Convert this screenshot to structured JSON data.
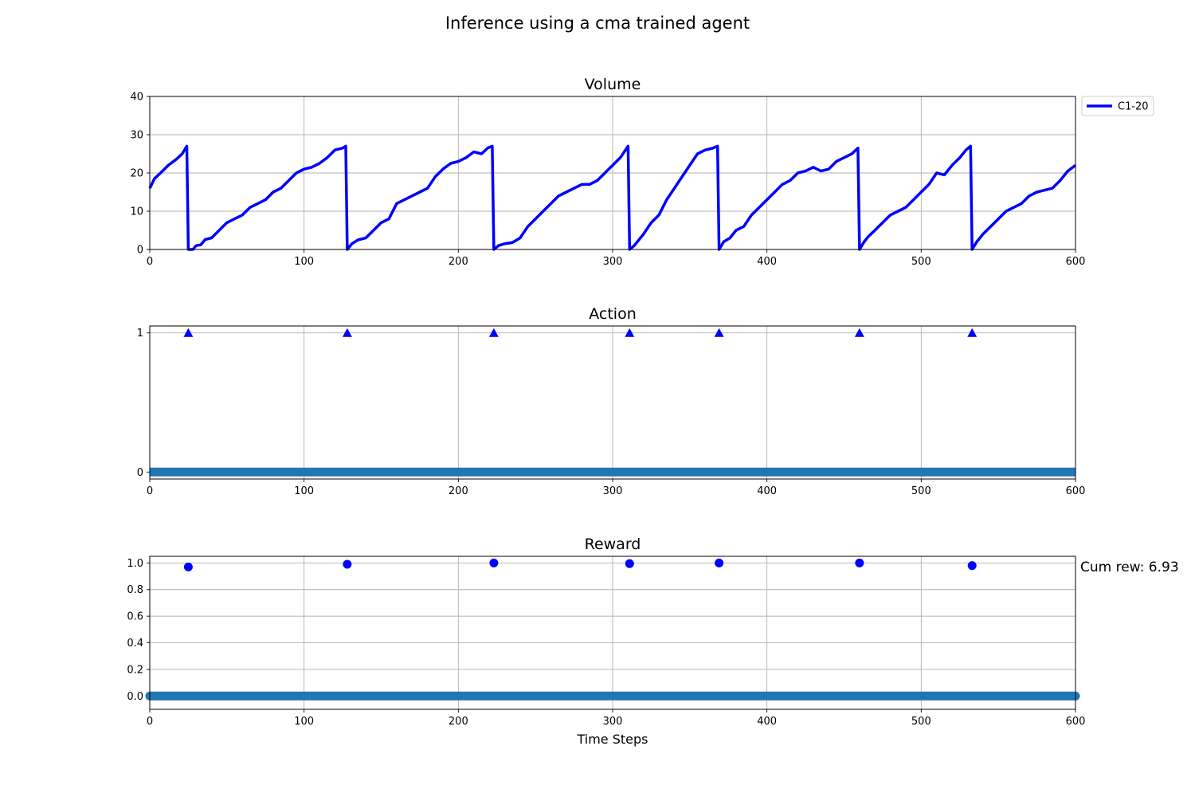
{
  "figure": {
    "title": "Inference using a cma trained agent",
    "xlabel": "Time Steps",
    "cum_reward_label": "Cum rew: 6.93"
  },
  "colors": {
    "series": "#0000ff",
    "baseline": "#1f77b4",
    "grid": "#b0b0b0"
  },
  "chart_data": [
    {
      "type": "line",
      "title": "Volume",
      "xlim": [
        0,
        600
      ],
      "ylim": [
        0,
        40
      ],
      "xticks": [
        0,
        100,
        200,
        300,
        400,
        500,
        600
      ],
      "yticks": [
        0,
        10,
        20,
        30,
        40
      ],
      "grid": true,
      "legend": {
        "placement": "outside-top-right",
        "entries": [
          "C1-20"
        ]
      },
      "series": [
        {
          "name": "C1-20",
          "points": [
            [
              0,
              16
            ],
            [
              3,
              18.5
            ],
            [
              7,
              20
            ],
            [
              12,
              22
            ],
            [
              17,
              23.5
            ],
            [
              21,
              25
            ],
            [
              24,
              27
            ],
            [
              25,
              0
            ],
            [
              28,
              0
            ],
            [
              30,
              1
            ],
            [
              33,
              1.2
            ],
            [
              36,
              2.6
            ],
            [
              40,
              3
            ],
            [
              45,
              5
            ],
            [
              50,
              7
            ],
            [
              55,
              8
            ],
            [
              60,
              9
            ],
            [
              65,
              11
            ],
            [
              70,
              12
            ],
            [
              75,
              13
            ],
            [
              80,
              15
            ],
            [
              85,
              16
            ],
            [
              90,
              18
            ],
            [
              95,
              20
            ],
            [
              100,
              21
            ],
            [
              105,
              21.5
            ],
            [
              110,
              22.5
            ],
            [
              115,
              24
            ],
            [
              120,
              26
            ],
            [
              125,
              26.5
            ],
            [
              127,
              27
            ],
            [
              128,
              0
            ],
            [
              131,
              1.5
            ],
            [
              135,
              2.5
            ],
            [
              140,
              3
            ],
            [
              145,
              5
            ],
            [
              150,
              7
            ],
            [
              155,
              8
            ],
            [
              160,
              12
            ],
            [
              165,
              13
            ],
            [
              170,
              14
            ],
            [
              175,
              15
            ],
            [
              180,
              16
            ],
            [
              185,
              19
            ],
            [
              190,
              21
            ],
            [
              195,
              22.5
            ],
            [
              200,
              23
            ],
            [
              205,
              24
            ],
            [
              210,
              25.5
            ],
            [
              215,
              25
            ],
            [
              219,
              26.5
            ],
            [
              222,
              27
            ],
            [
              223,
              0
            ],
            [
              226,
              1
            ],
            [
              230,
              1.5
            ],
            [
              235,
              1.8
            ],
            [
              240,
              3
            ],
            [
              245,
              6
            ],
            [
              250,
              8
            ],
            [
              255,
              10
            ],
            [
              260,
              12
            ],
            [
              265,
              14
            ],
            [
              270,
              15
            ],
            [
              275,
              16
            ],
            [
              280,
              17
            ],
            [
              285,
              17
            ],
            [
              290,
              18
            ],
            [
              295,
              20
            ],
            [
              300,
              22
            ],
            [
              305,
              24
            ],
            [
              310,
              27
            ],
            [
              311,
              0
            ],
            [
              314,
              1
            ],
            [
              320,
              4
            ],
            [
              325,
              7
            ],
            [
              330,
              9
            ],
            [
              335,
              13
            ],
            [
              340,
              16
            ],
            [
              345,
              19
            ],
            [
              350,
              22
            ],
            [
              355,
              25
            ],
            [
              360,
              26
            ],
            [
              365,
              26.5
            ],
            [
              368,
              27
            ],
            [
              369,
              0
            ],
            [
              372,
              2
            ],
            [
              376,
              3
            ],
            [
              380,
              5
            ],
            [
              385,
              6
            ],
            [
              390,
              9
            ],
            [
              395,
              11
            ],
            [
              400,
              13
            ],
            [
              405,
              15
            ],
            [
              410,
              17
            ],
            [
              415,
              18
            ],
            [
              420,
              20
            ],
            [
              425,
              20.5
            ],
            [
              430,
              21.5
            ],
            [
              435,
              20.5
            ],
            [
              440,
              21
            ],
            [
              445,
              23
            ],
            [
              450,
              24
            ],
            [
              455,
              25
            ],
            [
              459,
              26.5
            ],
            [
              460,
              0
            ],
            [
              463,
              2
            ],
            [
              466,
              3.5
            ],
            [
              470,
              5
            ],
            [
              475,
              7
            ],
            [
              480,
              9
            ],
            [
              485,
              10
            ],
            [
              490,
              11
            ],
            [
              495,
              13
            ],
            [
              500,
              15
            ],
            [
              505,
              17
            ],
            [
              510,
              20
            ],
            [
              515,
              19.5
            ],
            [
              520,
              22
            ],
            [
              525,
              24
            ],
            [
              529,
              26
            ],
            [
              532,
              27
            ],
            [
              533,
              0
            ],
            [
              536,
              2
            ],
            [
              540,
              4
            ],
            [
              545,
              6
            ],
            [
              550,
              8
            ],
            [
              555,
              10
            ],
            [
              560,
              11
            ],
            [
              565,
              12
            ],
            [
              570,
              14
            ],
            [
              575,
              15
            ],
            [
              580,
              15.5
            ],
            [
              585,
              16
            ],
            [
              590,
              18
            ],
            [
              595,
              20.5
            ],
            [
              600,
              22
            ]
          ]
        }
      ]
    },
    {
      "type": "scatter",
      "title": "Action",
      "xlim": [
        0,
        600
      ],
      "ylim": [
        -0.05,
        1.05
      ],
      "xticks": [
        0,
        100,
        200,
        300,
        400,
        500,
        600
      ],
      "yticks": [
        0,
        1
      ],
      "grid": true,
      "series": [
        {
          "marker": "triangle",
          "x": [
            25,
            128,
            223,
            311,
            369,
            460,
            533
          ],
          "y": [
            1,
            1,
            1,
            1,
            1,
            1,
            1
          ]
        },
        {
          "marker": "baseline-dots",
          "x_range": [
            0,
            600
          ],
          "y": 0
        }
      ]
    },
    {
      "type": "scatter",
      "title": "Reward",
      "xlim": [
        0,
        600
      ],
      "ylim": [
        -0.1,
        1.05
      ],
      "xticks": [
        0,
        100,
        200,
        300,
        400,
        500,
        600
      ],
      "yticks": [
        0.0,
        0.2,
        0.4,
        0.6,
        0.8,
        1.0
      ],
      "ytick_format": 1,
      "grid": true,
      "series": [
        {
          "marker": "circle",
          "x": [
            25,
            128,
            223,
            311,
            369,
            460,
            533
          ],
          "y": [
            0.97,
            0.99,
            1.0,
            0.995,
            1.0,
            1.0,
            0.98
          ]
        },
        {
          "marker": "baseline-dots",
          "x_range": [
            0,
            600
          ],
          "y": 0
        }
      ]
    }
  ]
}
